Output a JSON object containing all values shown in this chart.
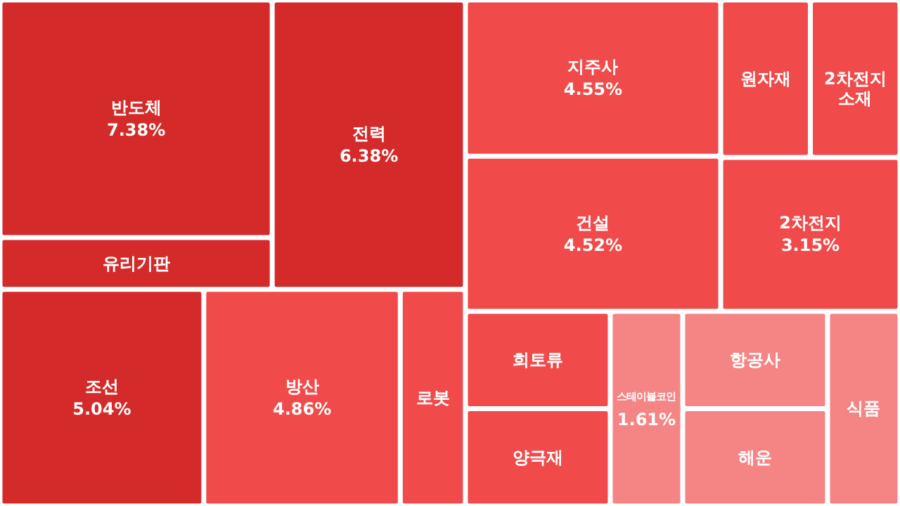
{
  "chart_data": {
    "type": "other",
    "categories": [
      "반도체",
      "유리기판",
      "전력",
      "조선",
      "방산",
      "로봇",
      "지주사",
      "건설",
      "원자재",
      "2차전지 소재",
      "2차전지",
      "희토류",
      "양극재",
      "스테이블코인",
      "항공사",
      "해운",
      "식품"
    ],
    "values": [
      7.38,
      null,
      6.38,
      5.04,
      4.86,
      null,
      4.55,
      4.52,
      null,
      null,
      3.15,
      null,
      null,
      1.61,
      null,
      null,
      null
    ],
    "value_labels": [
      "7.38%",
      null,
      "6.38%",
      "5.04%",
      "4.86%",
      null,
      "4.55%",
      "4.52%",
      null,
      null,
      "3.15%",
      null,
      null,
      "1.61%",
      null,
      null,
      null
    ],
    "colors": [
      "#d42a2a",
      "#d42a2a",
      "#d42a2a",
      "#d42a2a",
      "#f04a4a",
      "#f04a4a",
      "#f04a4a",
      "#f04a4a",
      "#f04a4a",
      "#f04a4a",
      "#f04a4a",
      "#f04a4a",
      "#f04a4a",
      "#f58585",
      "#f58585",
      "#f58585",
      "#f58585"
    ]
  }
}
